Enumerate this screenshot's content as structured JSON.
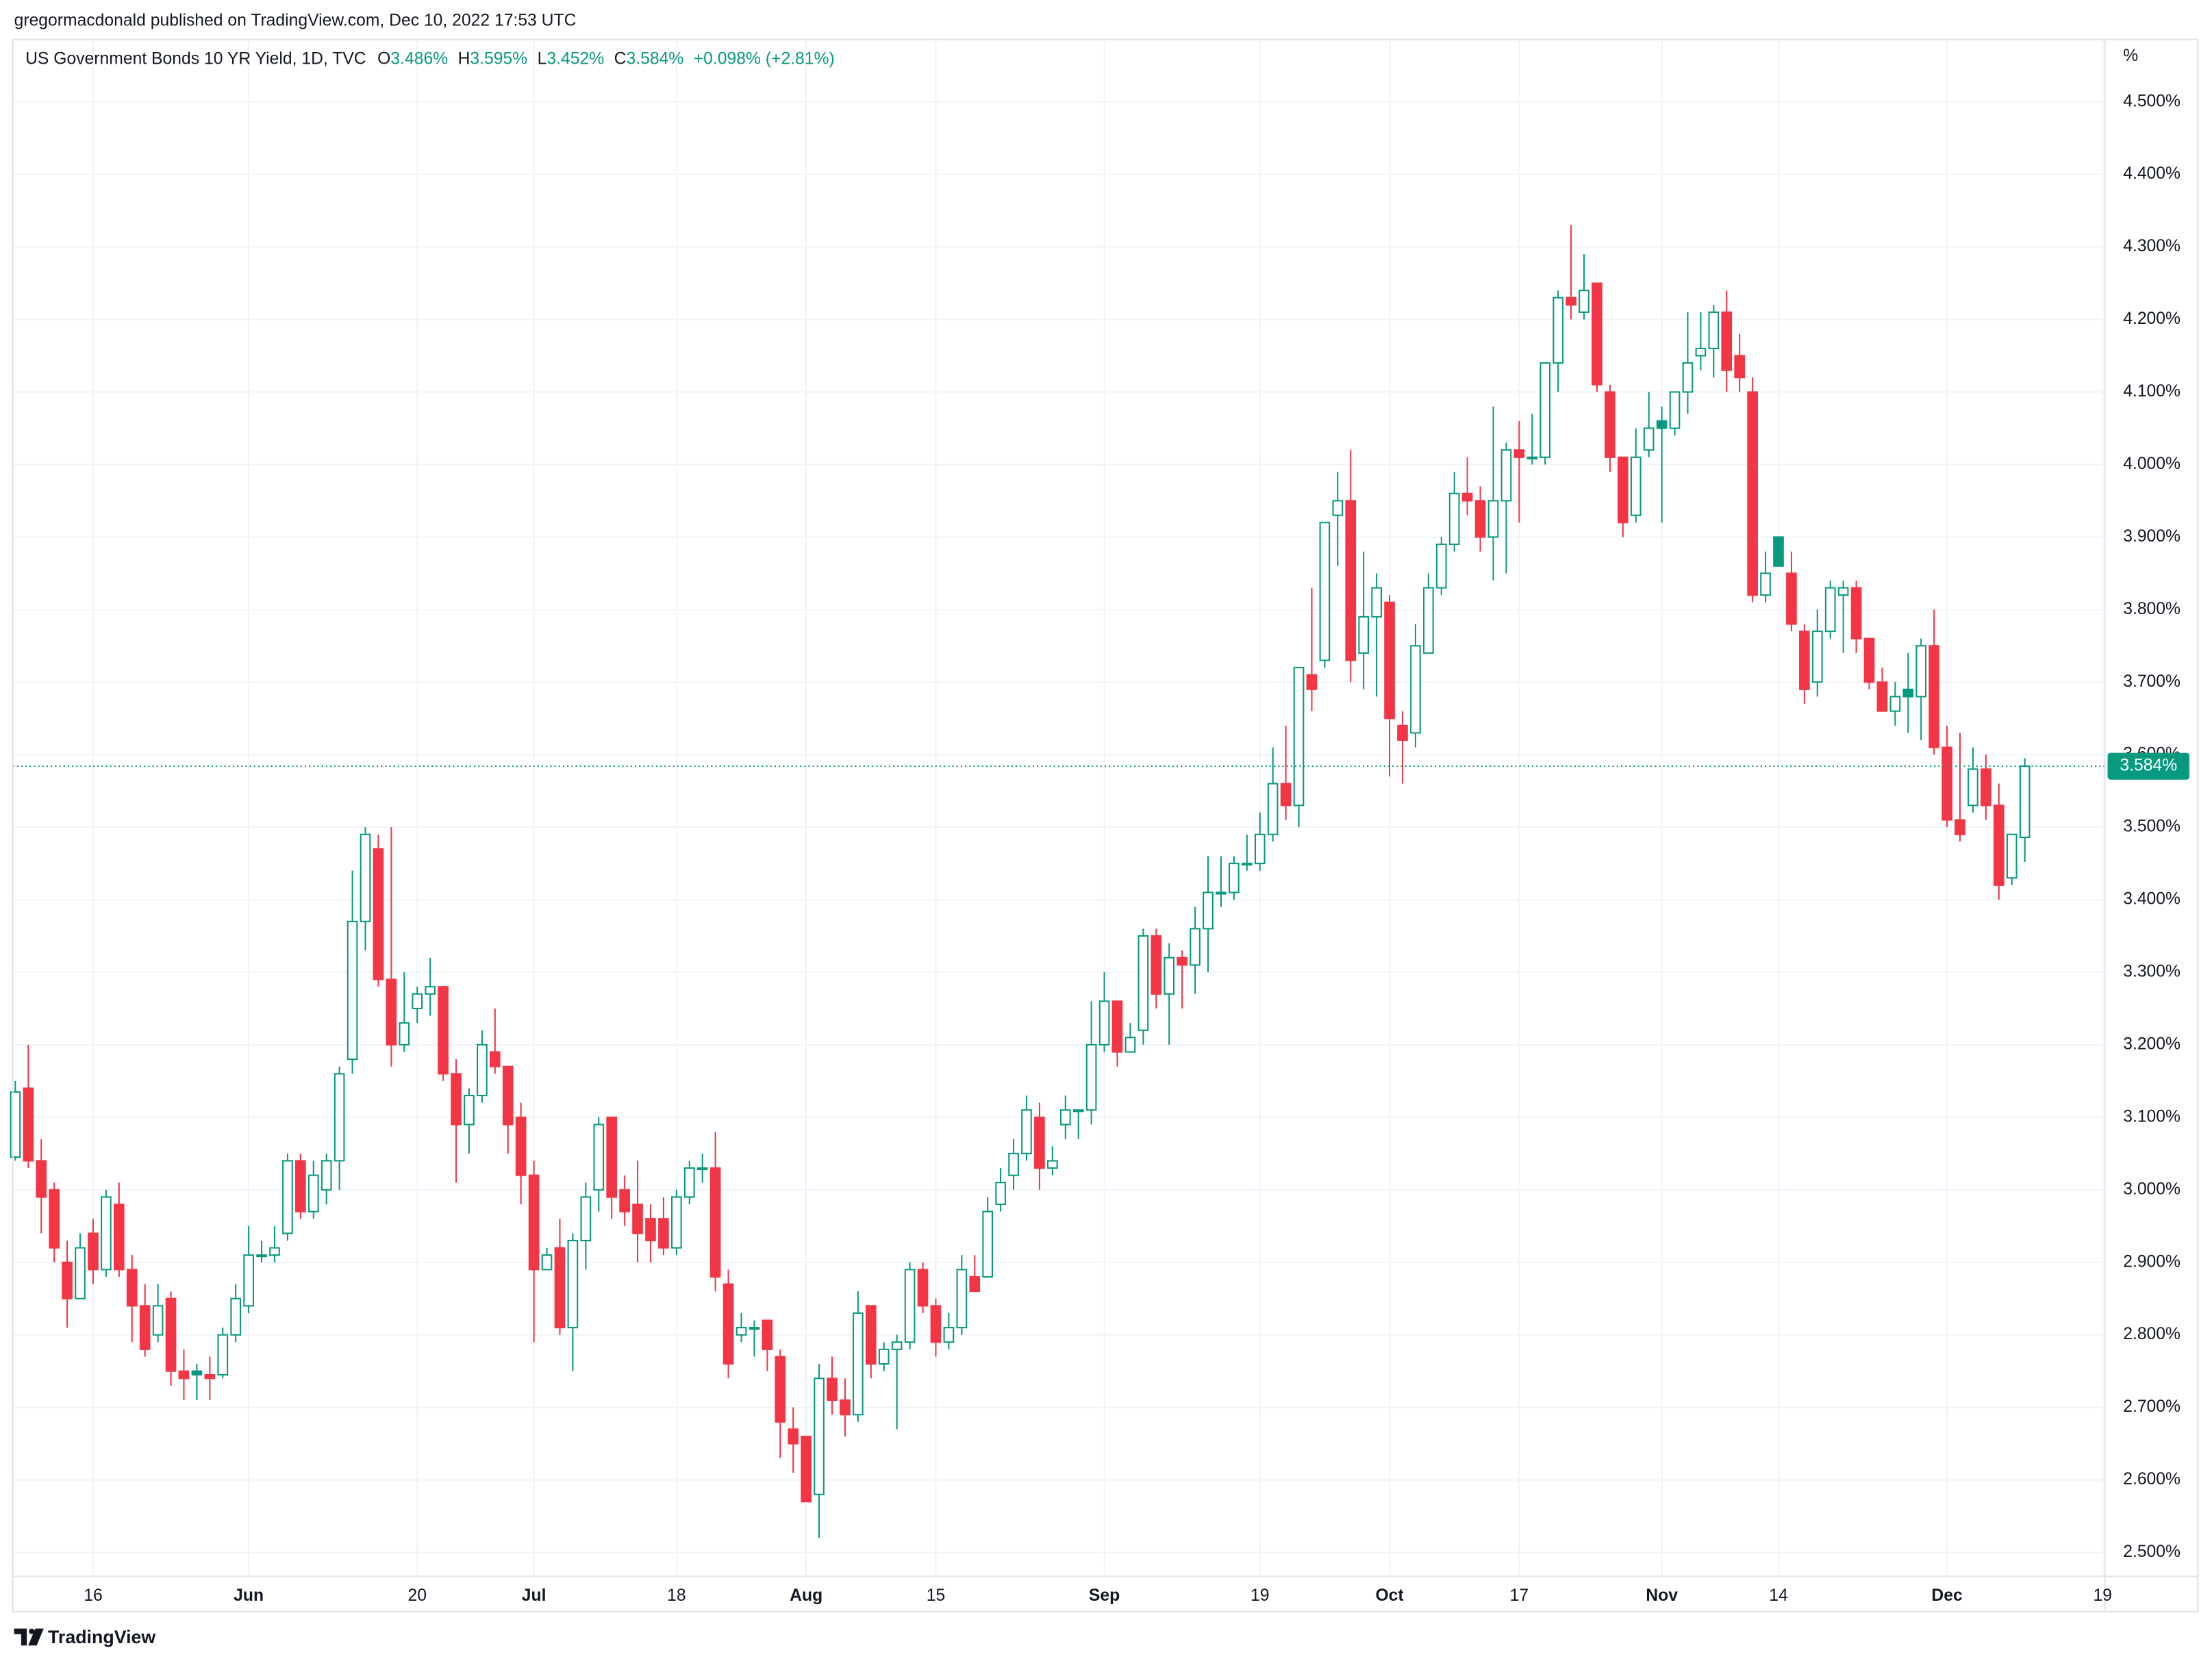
{
  "header": {
    "text": "gregormacdonald published on TradingView.com, Dec 10, 2022 17:53 UTC"
  },
  "footer": {
    "brand": "TradingView"
  },
  "chart_data": {
    "type": "candlestick",
    "title": "US Government Bonds 10 YR Yield, 1D, TVC",
    "legend": [
      {
        "key": "O",
        "text": "3.486%"
      },
      {
        "key": "H",
        "text": "3.595%"
      },
      {
        "key": "L",
        "text": "3.452%"
      },
      {
        "key": "C",
        "text": "3.584%"
      }
    ],
    "change": "+0.098% (+2.81%)",
    "y_unit": "%",
    "up_color": "#089981",
    "down_color": "#f23645",
    "grid": true,
    "last_price": {
      "value": 3.584,
      "label": "3.584%"
    },
    "ylim": [
      2.467,
      4.586
    ],
    "yticks": [
      {
        "value": 2.5,
        "label": "2.500%"
      },
      {
        "value": 2.6,
        "label": "2.600%"
      },
      {
        "value": 2.7,
        "label": "2.700%"
      },
      {
        "value": 2.8,
        "label": "2.800%"
      },
      {
        "value": 2.9,
        "label": "2.900%"
      },
      {
        "value": 3.0,
        "label": "3.000%"
      },
      {
        "value": 3.1,
        "label": "3.100%"
      },
      {
        "value": 3.2,
        "label": "3.200%"
      },
      {
        "value": 3.3,
        "label": "3.300%"
      },
      {
        "value": 3.4,
        "label": "3.400%"
      },
      {
        "value": 3.5,
        "label": "3.500%"
      },
      {
        "value": 3.6,
        "label": "3.600%"
      },
      {
        "value": 3.7,
        "label": "3.700%"
      },
      {
        "value": 3.8,
        "label": "3.800%"
      },
      {
        "value": 3.9,
        "label": "3.900%"
      },
      {
        "value": 4.0,
        "label": "4.000%"
      },
      {
        "value": 4.1,
        "label": "4.100%"
      },
      {
        "value": 4.2,
        "label": "4.200%"
      },
      {
        "value": 4.3,
        "label": "4.300%"
      },
      {
        "value": 4.4,
        "label": "4.400%"
      },
      {
        "value": 4.5,
        "label": "4.500%"
      }
    ],
    "categories": [
      null,
      null,
      null,
      null,
      null,
      null,
      "16",
      null,
      null,
      null,
      null,
      null,
      null,
      null,
      null,
      null,
      null,
      null,
      "Jun",
      null,
      null,
      null,
      null,
      null,
      null,
      null,
      null,
      null,
      null,
      null,
      null,
      "20",
      null,
      null,
      null,
      null,
      null,
      null,
      null,
      null,
      "Jul",
      null,
      null,
      null,
      null,
      null,
      null,
      null,
      null,
      null,
      null,
      "18",
      null,
      null,
      null,
      null,
      null,
      null,
      null,
      null,
      null,
      "Aug",
      null,
      null,
      null,
      null,
      null,
      null,
      null,
      null,
      null,
      "15",
      null,
      null,
      null,
      null,
      null,
      null,
      null,
      null,
      null,
      null,
      null,
      null,
      "Sep",
      null,
      null,
      null,
      null,
      null,
      null,
      null,
      null,
      null,
      null,
      null,
      "19",
      null,
      null,
      null,
      null,
      null,
      null,
      null,
      null,
      null,
      "Oct",
      null,
      null,
      null,
      null,
      null,
      null,
      null,
      null,
      null,
      "17",
      null,
      null,
      null,
      null,
      null,
      null,
      null,
      null,
      null,
      null,
      "Nov",
      null,
      null,
      null,
      null,
      null,
      null,
      null,
      null,
      "14",
      null,
      null,
      null,
      null,
      null,
      null,
      null,
      null,
      null,
      null,
      null,
      null,
      "Dec",
      null,
      null,
      null,
      null,
      null,
      null,
      null,
      null,
      null,
      null,
      null,
      "19"
    ],
    "open": [
      3.045,
      3.14,
      3.04,
      3.0,
      2.9,
      2.85,
      2.94,
      2.89,
      2.98,
      2.89,
      2.84,
      2.8,
      2.85,
      2.75,
      2.75,
      2.745,
      2.745,
      2.8,
      2.84,
      2.91,
      2.91,
      2.94,
      3.04,
      2.97,
      3.0,
      3.04,
      3.18,
      3.37,
      3.47,
      3.29,
      3.2,
      3.25,
      3.27,
      3.28,
      3.16,
      3.09,
      3.13,
      3.19,
      3.17,
      3.1,
      3.02,
      2.89,
      2.92,
      2.81,
      2.93,
      3.0,
      3.1,
      3.0,
      2.98,
      2.96,
      2.96,
      2.92,
      2.99,
      3.03,
      3.03,
      2.87,
      2.8,
      2.81,
      2.82,
      2.77,
      2.67,
      2.66,
      2.58,
      2.74,
      2.71,
      2.69,
      2.84,
      2.76,
      2.78,
      2.79,
      2.89,
      2.84,
      2.79,
      2.81,
      2.88,
      2.88,
      2.98,
      3.02,
      3.05,
      3.1,
      3.03,
      3.09,
      3.11,
      3.11,
      3.2,
      3.26,
      3.19,
      3.22,
      3.35,
      3.27,
      3.32,
      3.31,
      3.36,
      3.41,
      3.41,
      3.45,
      3.45,
      3.49,
      3.56,
      3.53,
      3.71,
      3.73,
      3.93,
      3.95,
      3.74,
      3.79,
      3.81,
      3.64,
      3.63,
      3.74,
      3.83,
      3.89,
      3.96,
      3.95,
      3.9,
      3.95,
      4.02,
      4.01,
      4.01,
      4.14,
      4.23,
      4.21,
      4.25,
      4.1,
      4.01,
      3.93,
      4.02,
      4.06,
      4.05,
      4.1,
      4.15,
      4.16,
      4.21,
      4.15,
      4.1,
      3.82,
      3.9,
      3.85,
      3.77,
      3.7,
      3.77,
      3.82,
      3.83,
      3.76,
      3.7,
      3.66,
      3.69,
      3.68,
      3.75,
      3.61,
      3.51,
      3.53,
      3.58,
      3.53,
      3.43,
      3.486,
      null,
      null,
      null,
      null,
      null,
      null
    ],
    "high": [
      3.15,
      3.2,
      3.07,
      3.01,
      2.93,
      2.94,
      2.96,
      3.0,
      3.01,
      2.91,
      2.87,
      2.87,
      2.86,
      2.78,
      2.76,
      2.77,
      2.81,
      2.87,
      2.95,
      2.93,
      2.95,
      3.05,
      3.05,
      3.04,
      3.05,
      3.17,
      3.44,
      3.5,
      3.49,
      3.5,
      3.3,
      3.28,
      3.32,
      3.28,
      3.18,
      3.14,
      3.22,
      3.25,
      3.17,
      3.12,
      3.04,
      2.92,
      2.96,
      2.94,
      3.01,
      3.1,
      3.1,
      3.02,
      3.04,
      2.98,
      2.99,
      3.0,
      3.04,
      3.05,
      3.08,
      2.89,
      2.83,
      2.82,
      2.82,
      2.78,
      2.7,
      2.66,
      2.76,
      2.77,
      2.74,
      2.86,
      2.84,
      2.79,
      2.8,
      2.9,
      2.9,
      2.85,
      2.83,
      2.91,
      2.91,
      2.99,
      3.03,
      3.07,
      3.13,
      3.12,
      3.06,
      3.13,
      3.11,
      3.26,
      3.3,
      3.26,
      3.23,
      3.36,
      3.36,
      3.34,
      3.33,
      3.39,
      3.46,
      3.46,
      3.46,
      3.49,
      3.52,
      3.61,
      3.64,
      3.72,
      3.83,
      3.92,
      3.99,
      4.02,
      3.88,
      3.85,
      3.82,
      3.66,
      3.78,
      3.85,
      3.9,
      3.99,
      4.01,
      3.97,
      4.08,
      4.03,
      4.06,
      4.07,
      4.14,
      4.24,
      4.33,
      4.29,
      4.25,
      4.11,
      4.01,
      4.05,
      4.1,
      4.08,
      4.1,
      4.21,
      4.21,
      4.22,
      4.24,
      4.18,
      4.12,
      3.88,
      3.9,
      3.88,
      3.78,
      3.8,
      3.84,
      3.84,
      3.84,
      3.76,
      3.72,
      3.7,
      3.74,
      3.76,
      3.8,
      3.64,
      3.63,
      3.61,
      3.6,
      3.56,
      3.49,
      3.595,
      null,
      null,
      null,
      null,
      null,
      null
    ],
    "low": [
      3.04,
      3.03,
      2.94,
      2.9,
      2.81,
      2.85,
      2.87,
      2.88,
      2.88,
      2.79,
      2.77,
      2.79,
      2.73,
      2.71,
      2.71,
      2.71,
      2.74,
      2.79,
      2.83,
      2.9,
      2.9,
      2.93,
      2.96,
      2.96,
      2.98,
      3.0,
      3.16,
      3.33,
      3.28,
      3.17,
      3.19,
      3.23,
      3.24,
      3.15,
      3.01,
      3.05,
      3.12,
      3.16,
      3.05,
      2.98,
      2.79,
      2.89,
      2.8,
      2.75,
      2.89,
      2.97,
      2.96,
      2.95,
      2.9,
      2.9,
      2.91,
      2.91,
      2.98,
      3.01,
      2.86,
      2.74,
      2.79,
      2.77,
      2.75,
      2.63,
      2.61,
      2.57,
      2.52,
      2.69,
      2.66,
      2.68,
      2.74,
      2.75,
      2.67,
      2.78,
      2.83,
      2.77,
      2.78,
      2.8,
      2.86,
      2.88,
      2.97,
      3.0,
      3.04,
      3.0,
      3.02,
      3.07,
      3.07,
      3.09,
      3.19,
      3.17,
      3.19,
      3.2,
      3.25,
      3.2,
      3.25,
      3.27,
      3.3,
      3.39,
      3.4,
      3.44,
      3.44,
      3.48,
      3.51,
      3.5,
      3.66,
      3.72,
      3.86,
      3.7,
      3.69,
      3.68,
      3.57,
      3.56,
      3.61,
      3.74,
      3.82,
      3.88,
      3.93,
      3.88,
      3.84,
      3.85,
      3.92,
      4.0,
      4.0,
      4.1,
      4.2,
      4.2,
      4.1,
      3.99,
      3.9,
      3.92,
      4.01,
      3.92,
      4.04,
      4.07,
      4.13,
      4.12,
      4.1,
      4.1,
      3.81,
      3.81,
      3.86,
      3.77,
      3.67,
      3.68,
      3.76,
      3.74,
      3.74,
      3.69,
      3.66,
      3.64,
      3.63,
      3.62,
      3.6,
      3.5,
      3.48,
      3.52,
      3.51,
      3.4,
      3.42,
      3.452,
      null,
      null,
      null,
      null,
      null,
      null
    ],
    "close": [
      3.135,
      3.04,
      2.99,
      2.92,
      2.85,
      2.92,
      2.89,
      2.99,
      2.89,
      2.84,
      2.78,
      2.84,
      2.75,
      2.74,
      2.745,
      2.74,
      2.8,
      2.85,
      2.91,
      2.91,
      2.92,
      3.04,
      2.97,
      3.02,
      3.04,
      3.16,
      3.37,
      3.49,
      3.29,
      3.2,
      3.23,
      3.27,
      3.28,
      3.16,
      3.09,
      3.13,
      3.2,
      3.17,
      3.09,
      3.02,
      2.89,
      2.91,
      2.81,
      2.93,
      2.99,
      3.09,
      2.99,
      2.97,
      2.94,
      2.93,
      2.92,
      2.99,
      3.03,
      3.03,
      2.88,
      2.76,
      2.81,
      2.81,
      2.78,
      2.68,
      2.65,
      2.57,
      2.74,
      2.71,
      2.69,
      2.83,
      2.76,
      2.78,
      2.79,
      2.89,
      2.84,
      2.79,
      2.81,
      2.89,
      2.86,
      2.97,
      3.01,
      3.05,
      3.11,
      3.03,
      3.04,
      3.11,
      3.11,
      3.2,
      3.26,
      3.19,
      3.21,
      3.35,
      3.27,
      3.32,
      3.31,
      3.36,
      3.41,
      3.41,
      3.45,
      3.45,
      3.49,
      3.56,
      3.53,
      3.72,
      3.69,
      3.92,
      3.95,
      3.73,
      3.79,
      3.83,
      3.65,
      3.62,
      3.75,
      3.83,
      3.89,
      3.96,
      3.95,
      3.9,
      3.95,
      4.02,
      4.01,
      4.01,
      4.14,
      4.23,
      4.22,
      4.24,
      4.11,
      4.01,
      3.92,
      4.01,
      4.05,
      4.05,
      4.1,
      4.14,
      4.16,
      4.21,
      4.13,
      4.12,
      3.82,
      3.85,
      3.86,
      3.78,
      3.69,
      3.77,
      3.83,
      3.83,
      3.76,
      3.7,
      3.66,
      3.68,
      3.68,
      3.75,
      3.61,
      3.51,
      3.49,
      3.58,
      3.53,
      3.42,
      3.49,
      3.584,
      null,
      null,
      null,
      null,
      null,
      null
    ]
  }
}
